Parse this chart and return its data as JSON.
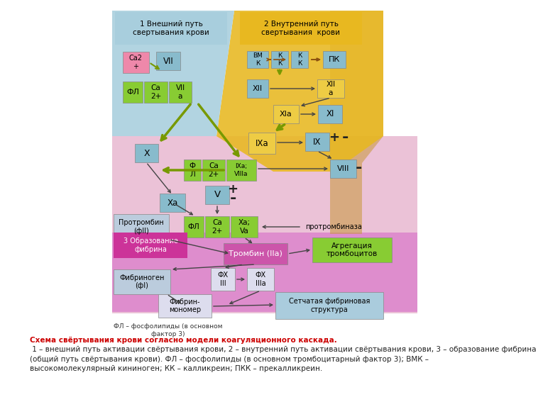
{
  "bg_color": "#ffffff",
  "caption_bold": "Схема свёртывания крови согласно модели коагуляционного каскада.",
  "caption_normal": " 1 – внешний путь активации свёртывания крови, 2 – внутренний путь активации свёртывания крови, 3 – образование фибрина\n(общий путь свёртывания крови). ФЛ – фосфолипиды (в основном тромбоцитарный фактор 3); ВМК –\nвысокомолекулярный кининоген; КК – калликреин; ПКК – прекалликреин.",
  "note": "ФЛ – фосфолипиды (в основном\nфактор 3)",
  "colors": {
    "light_blue_bg": "#a8cedd",
    "yellow_bg": "#e8b820",
    "tan_bg": "#c89030",
    "pink_bg": "#e8aac8",
    "pink2_bg": "#dd88bb",
    "violet_bg": "#cc55aa",
    "green_box": "#88cc33",
    "pink_box": "#ee88aa",
    "blue_box": "#88bbcc",
    "yellow_box": "#eecc44",
    "gray_box": "#bbccdd",
    "light_gray_box": "#ddddee",
    "cyan_box": "#aaccdd",
    "dark_gray": "#444444",
    "dark_brown": "#8B5010",
    "arrow_green": "#779900"
  }
}
